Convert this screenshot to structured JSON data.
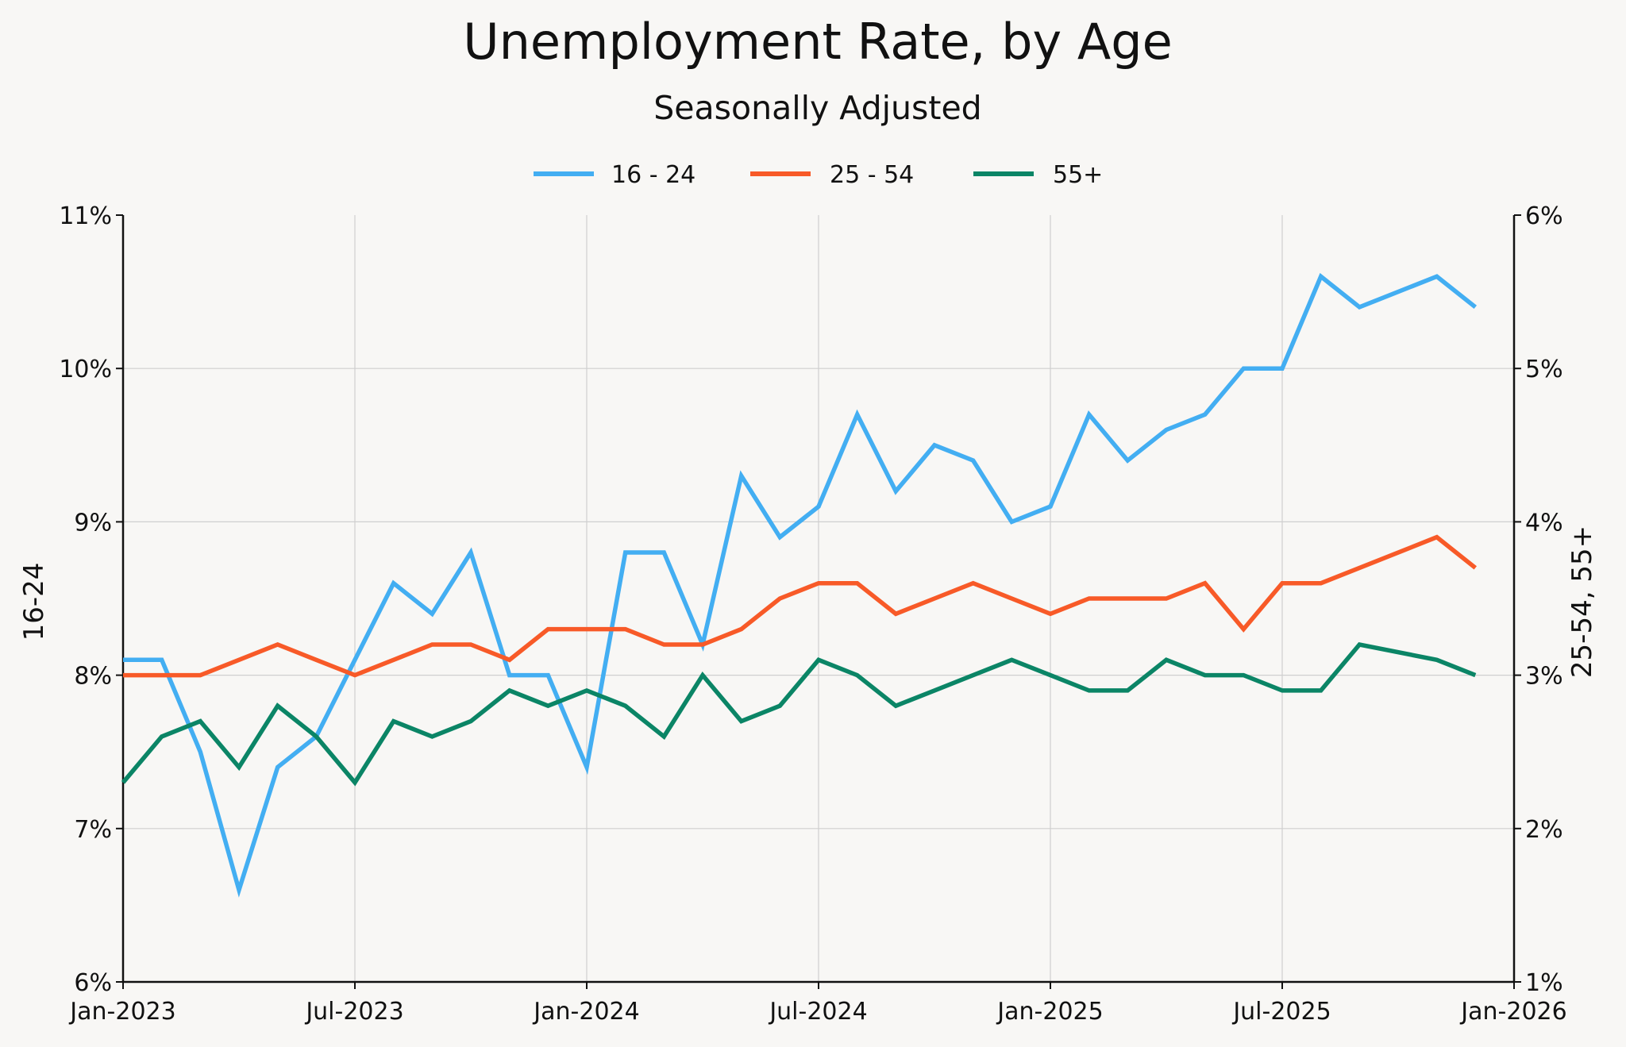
{
  "chart_data": {
    "type": "line",
    "title": "Unemployment Rate, by Age",
    "subtitle": "Seasonally Adjusted",
    "ylabel_left": "16-24",
    "ylabel_right": "25-54, 55+",
    "x_ticks": [
      "Jan-2023",
      "Jul-2023",
      "Jan-2024",
      "Jul-2024",
      "Jan-2025",
      "Jul-2025",
      "Jan-2026"
    ],
    "y_left_ticks": [
      "6%",
      "7%",
      "8%",
      "9%",
      "10%",
      "11%"
    ],
    "y_right_ticks": [
      "1%",
      "2%",
      "3%",
      "4%",
      "5%",
      "6%"
    ],
    "x_range": [
      "2023-01",
      "2026-01"
    ],
    "ylim_left": [
      6,
      11
    ],
    "ylim_right": [
      1,
      6
    ],
    "grid": true,
    "legend_position": "top-center",
    "x": [
      "2023-01",
      "2023-02",
      "2023-03",
      "2023-04",
      "2023-05",
      "2023-06",
      "2023-07",
      "2023-08",
      "2023-09",
      "2023-10",
      "2023-11",
      "2023-12",
      "2024-01",
      "2024-02",
      "2024-03",
      "2024-04",
      "2024-05",
      "2024-06",
      "2024-07",
      "2024-08",
      "2024-09",
      "2024-10",
      "2024-11",
      "2024-12",
      "2025-01",
      "2025-02",
      "2025-03",
      "2025-04",
      "2025-05",
      "2025-06",
      "2025-07",
      "2025-08",
      "2025-09",
      "2025-11",
      "2025-12"
    ],
    "series": [
      {
        "name": "16 - 24",
        "axis": "left",
        "color": "#43aef2",
        "values": [
          8.1,
          8.1,
          7.5,
          6.6,
          7.4,
          7.6,
          8.1,
          8.6,
          8.4,
          8.8,
          8.0,
          8.0,
          7.4,
          8.8,
          8.8,
          8.2,
          9.3,
          8.9,
          9.1,
          9.7,
          9.2,
          9.5,
          9.4,
          9.0,
          9.1,
          9.7,
          9.4,
          9.6,
          9.7,
          10.0,
          10.0,
          10.6,
          10.4,
          10.6,
          10.4
        ]
      },
      {
        "name": "25 - 54",
        "axis": "right",
        "color": "#f85a28",
        "values": [
          3.0,
          3.0,
          3.0,
          3.1,
          3.2,
          3.1,
          3.0,
          3.1,
          3.2,
          3.2,
          3.1,
          3.3,
          3.3,
          3.3,
          3.2,
          3.2,
          3.3,
          3.5,
          3.6,
          3.6,
          3.4,
          3.5,
          3.6,
          3.5,
          3.4,
          3.5,
          3.5,
          3.5,
          3.6,
          3.3,
          3.6,
          3.6,
          3.7,
          3.9,
          3.7
        ]
      },
      {
        "name": "55+",
        "axis": "right",
        "color": "#0b8566",
        "values": [
          2.3,
          2.6,
          2.7,
          2.4,
          2.8,
          2.6,
          2.3,
          2.7,
          2.6,
          2.7,
          2.9,
          2.8,
          2.9,
          2.8,
          2.6,
          3.0,
          2.7,
          2.8,
          3.1,
          3.0,
          2.8,
          2.9,
          3.0,
          3.1,
          3.0,
          2.9,
          2.9,
          3.1,
          3.0,
          3.0,
          2.9,
          2.9,
          3.2,
          3.1,
          3.0
        ]
      }
    ]
  }
}
